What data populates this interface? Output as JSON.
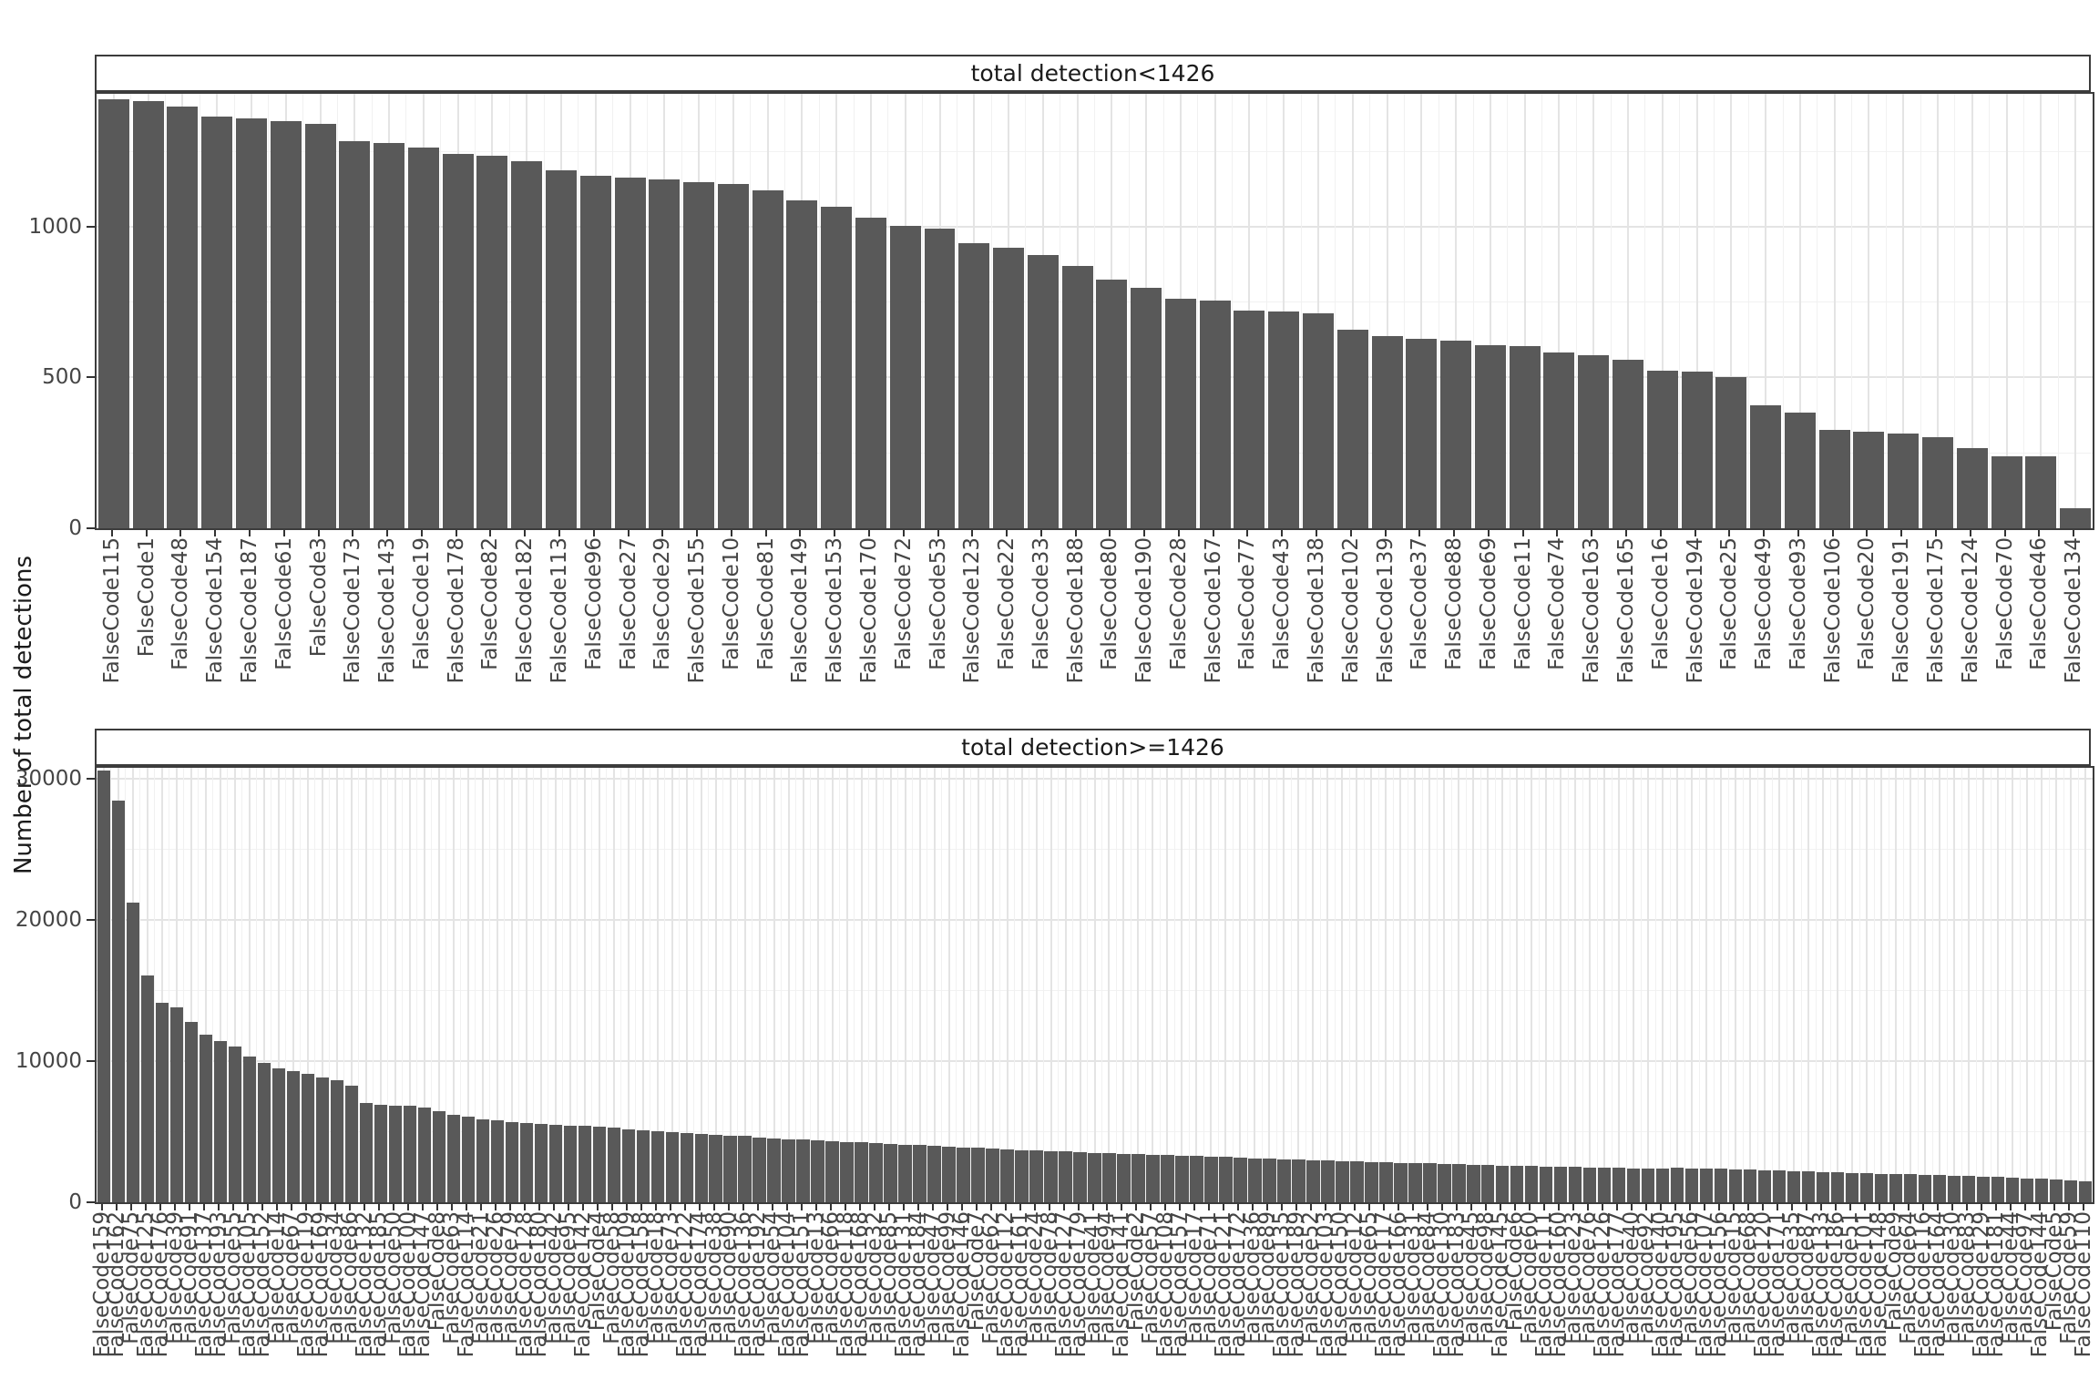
{
  "ylabel": "Number of total detections",
  "bar_color": "#595959",
  "text_color": "#454545",
  "chart_data": [
    {
      "type": "bar",
      "title": "total detection<1426",
      "xlabel": "",
      "ylabel": "Number of total detections",
      "ylim": [
        0,
        1441
      ],
      "yticks": [
        0,
        500,
        1000
      ],
      "grid": "on",
      "legend": "none",
      "categories": [
        "FalseCode115",
        "FalseCode1",
        "FalseCode48",
        "FalseCode154",
        "FalseCode187",
        "FalseCode61",
        "FalseCode3",
        "FalseCode173",
        "FalseCode143",
        "FalseCode19",
        "FalseCode178",
        "FalseCode82",
        "FalseCode182",
        "FalseCode113",
        "FalseCode96",
        "FalseCode27",
        "FalseCode29",
        "FalseCode155",
        "FalseCode10",
        "FalseCode81",
        "FalseCode149",
        "FalseCode153",
        "FalseCode170",
        "FalseCode72",
        "FalseCode53",
        "FalseCode123",
        "FalseCode22",
        "FalseCode33",
        "FalseCode188",
        "FalseCode80",
        "FalseCode190",
        "FalseCode28",
        "FalseCode167",
        "FalseCode77",
        "FalseCode43",
        "FalseCode138",
        "FalseCode102",
        "FalseCode139",
        "FalseCode37",
        "FalseCode88",
        "FalseCode69",
        "FalseCode11",
        "FalseCode74",
        "FalseCode163",
        "FalseCode165",
        "FalseCode16",
        "FalseCode194",
        "FalseCode25",
        "FalseCode49",
        "FalseCode93",
        "FalseCode106",
        "FalseCode20",
        "FalseCode191",
        "FalseCode175",
        "FalseCode124",
        "FalseCode70",
        "FalseCode46",
        "FalseCode134"
      ],
      "values": [
        1424,
        1418,
        1400,
        1366,
        1360,
        1351,
        1342,
        1285,
        1279,
        1263,
        1242,
        1236,
        1218,
        1188,
        1170,
        1164,
        1158,
        1148,
        1142,
        1121,
        1088,
        1066,
        1030,
        1003,
        994,
        945,
        930,
        906,
        870,
        824,
        797,
        760,
        754,
        721,
        718,
        712,
        658,
        636,
        627,
        621,
        606,
        603,
        582,
        573,
        558,
        524,
        521,
        503,
        409,
        385,
        327,
        321,
        315,
        303,
        267,
        239,
        239,
        67
      ]
    },
    {
      "type": "bar",
      "title": "total detection>=1426",
      "xlabel": "",
      "ylabel": "Number of total detections",
      "ylim": [
        0,
        30770
      ],
      "yticks": [
        0,
        10000,
        20000,
        30000
      ],
      "grid": "on",
      "legend": "none",
      "categories": [
        "FalseCode159",
        "FalseCode162",
        "FalseCode75",
        "FalseCode125",
        "FalseCode176",
        "FalseCode39",
        "FalseCode91",
        "FalseCode137",
        "FalseCode193",
        "FalseCode55",
        "FalseCode105",
        "FalseCode152",
        "FalseCode14",
        "FalseCode67",
        "FalseCode119",
        "FalseCode169",
        "FalseCode34",
        "FalseCode86",
        "FalseCode132",
        "FalseCode185",
        "FalseCode50",
        "FalseCode100",
        "FalseCode147",
        "FalseCode8",
        "FalseCode63",
        "FalseCode114",
        "FalseCode21",
        "FalseCode26",
        "FalseCode79",
        "FalseCode128",
        "FalseCode180",
        "FalseCode42",
        "FalseCode95",
        "FalseCode142",
        "FalseCode4",
        "FalseCode58",
        "FalseCode109",
        "FalseCode158",
        "FalseCode18",
        "FalseCode73",
        "FalseCode122",
        "FalseCode174",
        "FalseCode38",
        "FalseCode90",
        "FalseCode136",
        "FalseCode192",
        "FalseCode54",
        "FalseCode104",
        "FalseCode151",
        "FalseCode13",
        "FalseCode66",
        "FalseCode118",
        "FalseCode168",
        "FalseCode32",
        "FalseCode85",
        "FalseCode131",
        "FalseCode184",
        "FalseCode47",
        "FalseCode99",
        "FalseCode146",
        "FalseCode7",
        "FalseCode62",
        "FalseCode112",
        "FalseCode161",
        "FalseCode24",
        "FalseCode78",
        "FalseCode127",
        "FalseCode179",
        "FalseCode41",
        "FalseCode94",
        "FalseCode141",
        "FalseCode2",
        "FalseCode57",
        "FalseCode108",
        "FalseCode157",
        "FalseCode17",
        "FalseCode71",
        "FalseCode121",
        "FalseCode172",
        "FalseCode36",
        "FalseCode89",
        "FalseCode135",
        "FalseCode189",
        "FalseCode52",
        "FalseCode103",
        "FalseCode150",
        "FalseCode12",
        "FalseCode65",
        "FalseCode117",
        "FalseCode166",
        "FalseCode31",
        "FalseCode84",
        "FalseCode130",
        "FalseCode183",
        "FalseCode45",
        "FalseCode98",
        "FalseCode145",
        "FalseCode6",
        "FalseCode60",
        "FalseCode111",
        "FalseCode160",
        "FalseCode23",
        "FalseCode76",
        "FalseCode126",
        "FalseCode177",
        "FalseCode40",
        "FalseCode92",
        "FalseCode140",
        "FalseCode195",
        "FalseCode56",
        "FalseCode107",
        "FalseCode156",
        "FalseCode15",
        "FalseCode68",
        "FalseCode120",
        "FalseCode171",
        "FalseCode35",
        "FalseCode87",
        "FalseCode133",
        "FalseCode186",
        "FalseCode51",
        "FalseCode101",
        "FalseCode148",
        "FalseCode9",
        "FalseCode64",
        "FalseCode116",
        "FalseCode164",
        "FalseCode30",
        "FalseCode83",
        "FalseCode129",
        "FalseCode181",
        "FalseCode44",
        "FalseCode97",
        "FalseCode144",
        "FalseCode5",
        "FalseCode59",
        "FalseCode110"
      ],
      "values": [
        30570,
        28480,
        21230,
        16060,
        14130,
        13800,
        12770,
        11870,
        11390,
        11040,
        10310,
        9890,
        9510,
        9300,
        9110,
        8870,
        8670,
        8290,
        7010,
        6930,
        6870,
        6810,
        6700,
        6480,
        6200,
        6090,
        5890,
        5800,
        5690,
        5590,
        5540,
        5480,
        5430,
        5390,
        5340,
        5280,
        5190,
        5100,
        5010,
        4950,
        4890,
        4840,
        4790,
        4740,
        4690,
        4600,
        4520,
        4470,
        4420,
        4380,
        4330,
        4280,
        4230,
        4190,
        4140,
        4090,
        4040,
        3990,
        3950,
        3900,
        3850,
        3800,
        3760,
        3710,
        3670,
        3630,
        3590,
        3550,
        3510,
        3470,
        3430,
        3400,
        3370,
        3340,
        3310,
        3280,
        3240,
        3200,
        3160,
        3120,
        3080,
        3040,
        3010,
        2980,
        2950,
        2920,
        2890,
        2860,
        2830,
        2800,
        2780,
        2760,
        2730,
        2700,
        2670,
        2640,
        2610,
        2580,
        2560,
        2540,
        2520,
        2500,
        2480,
        2460,
        2440,
        2420,
        2400,
        2380,
        2440,
        2420,
        2390,
        2360,
        2330,
        2300,
        2270,
        2240,
        2210,
        2180,
        2150,
        2120,
        2090,
        2060,
        2030,
        2000,
        1970,
        1940,
        1910,
        1880,
        1850,
        1820,
        1780,
        1740,
        1700,
        1650,
        1600,
        1540,
        1470
      ]
    }
  ]
}
